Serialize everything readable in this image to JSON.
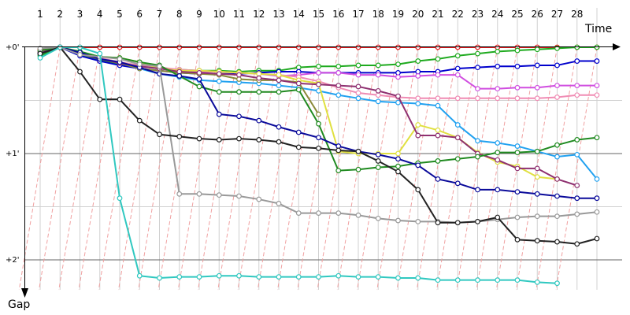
{
  "chart_data": {
    "type": "line",
    "title": "",
    "xlabel": "Time",
    "ylabel": "Gap",
    "x_ticks": [
      1,
      2,
      3,
      4,
      5,
      6,
      7,
      8,
      9,
      10,
      11,
      12,
      13,
      14,
      15,
      16,
      17,
      18,
      19,
      20,
      21,
      22,
      23,
      24,
      25,
      26,
      27,
      28
    ],
    "x_tick_labels": [
      "1",
      "2",
      "3",
      "4",
      "5",
      "6",
      "7",
      "8",
      "9",
      "10",
      "11",
      "12",
      "13",
      "14",
      "15",
      "16",
      "17",
      "18",
      "19",
      "20",
      "21",
      "22",
      "23",
      "24",
      "25",
      "26",
      "27",
      "28"
    ],
    "xlim": [
      1,
      29.5
    ],
    "y_ticks": [
      0,
      1,
      2
    ],
    "y_tick_labels": [
      "+0'",
      "+1'",
      "+2'"
    ],
    "ylim": [
      -0.17,
      2.22
    ],
    "grid": true,
    "series": [
      {
        "color": "#e31a1c",
        "values": [
          0.02,
          0.0,
          0.0,
          0.0,
          0.0,
          0.0,
          0.0,
          0.0,
          0.0,
          0.0,
          0.0,
          0.0,
          0.0,
          0.0,
          0.0,
          0.0,
          0.0,
          0.0,
          0.0,
          0.0,
          0.0,
          0.0,
          0.0,
          0.0,
          0.0,
          0.0,
          0.0,
          0.0,
          0.0
        ]
      },
      {
        "color": "#1faa1f",
        "values": [
          0.08,
          0.0,
          0.07,
          0.12,
          0.16,
          0.18,
          0.2,
          0.21,
          0.22,
          0.22,
          0.23,
          0.22,
          0.22,
          0.19,
          0.18,
          0.18,
          0.17,
          0.17,
          0.16,
          0.13,
          0.11,
          0.08,
          0.06,
          0.04,
          0.03,
          0.02,
          0.01,
          0.0,
          0.0
        ]
      },
      {
        "color": "#0000cc",
        "values": [
          0.05,
          0.0,
          0.08,
          0.13,
          0.17,
          0.2,
          0.22,
          0.24,
          0.25,
          0.25,
          0.25,
          0.24,
          0.23,
          0.23,
          0.24,
          0.24,
          0.24,
          0.24,
          0.24,
          0.23,
          0.23,
          0.2,
          0.19,
          0.18,
          0.18,
          0.17,
          0.17,
          0.13,
          0.13
        ]
      },
      {
        "color": "#d04ee0",
        "values": [
          0.04,
          0.0,
          0.06,
          0.1,
          0.15,
          0.18,
          0.2,
          0.21,
          0.23,
          0.23,
          0.24,
          0.25,
          0.27,
          0.26,
          0.24,
          0.24,
          0.26,
          0.26,
          0.28,
          0.27,
          0.26,
          0.26,
          0.39,
          0.39,
          0.38,
          0.38,
          0.36,
          0.36,
          0.36
        ]
      },
      {
        "color": "#f08cb4",
        "values": [
          0.03,
          0.0,
          0.05,
          0.1,
          0.14,
          0.17,
          0.19,
          0.21,
          0.22,
          0.23,
          0.24,
          0.25,
          0.26,
          0.28,
          0.32,
          0.38,
          0.43,
          0.45,
          0.47,
          0.48,
          0.48,
          0.48,
          0.48,
          0.48,
          0.48,
          0.48,
          0.47,
          0.45,
          0.45
        ]
      },
      {
        "color": "#21a1f0",
        "values": [
          0.06,
          0.0,
          0.06,
          0.11,
          0.15,
          0.2,
          0.25,
          0.28,
          0.31,
          0.32,
          0.33,
          0.34,
          0.36,
          0.38,
          0.41,
          0.45,
          0.48,
          0.51,
          0.52,
          0.53,
          0.55,
          0.73,
          0.88,
          0.9,
          0.93,
          0.98,
          1.03,
          1.01,
          1.24
        ]
      },
      {
        "color": "#8a8a3a",
        "values": [
          0.06,
          0.0,
          0.06,
          0.11,
          0.15,
          0.2,
          0.22,
          0.24,
          0.25,
          0.26,
          0.3,
          0.31,
          0.31,
          0.33,
          0.63
        ]
      },
      {
        "color": "#e0e040",
        "values": [
          0.05,
          0.0,
          0.05,
          0.09,
          0.1,
          0.14,
          0.2,
          0.22,
          0.22,
          0.23,
          0.24,
          0.25,
          0.26,
          0.31,
          0.34,
          0.98,
          1.0,
          1.0,
          1.0,
          0.73,
          0.78,
          0.85,
          0.99,
          1.08,
          1.12,
          1.22,
          1.24
        ]
      },
      {
        "color": "#8e3070",
        "values": [
          0.05,
          0.0,
          0.06,
          0.11,
          0.15,
          0.18,
          0.2,
          0.23,
          0.24,
          0.25,
          0.26,
          0.29,
          0.31,
          0.34,
          0.35,
          0.36,
          0.37,
          0.41,
          0.46,
          0.83,
          0.83,
          0.85,
          1.0,
          1.06,
          1.14,
          1.14,
          1.24,
          1.3
        ]
      },
      {
        "color": "#208a20",
        "values": [
          0.03,
          0.0,
          0.04,
          0.09,
          0.1,
          0.14,
          0.17,
          0.27,
          0.37,
          0.42,
          0.42,
          0.42,
          0.42,
          0.4,
          0.72,
          1.16,
          1.15,
          1.13,
          1.12,
          1.09,
          1.07,
          1.05,
          1.03,
          0.99,
          0.99,
          0.98,
          0.92,
          0.87,
          0.85
        ]
      },
      {
        "color": "#0a0a9a",
        "values": [
          0.06,
          0.0,
          0.05,
          0.11,
          0.14,
          0.19,
          0.25,
          0.27,
          0.3,
          0.63,
          0.65,
          0.69,
          0.75,
          0.8,
          0.85,
          0.93,
          0.98,
          1.01,
          1.05,
          1.11,
          1.24,
          1.28,
          1.34,
          1.34,
          1.36,
          1.38,
          1.4,
          1.42,
          1.42
        ]
      },
      {
        "color": "#999999",
        "values": [
          0.01,
          0.0,
          0.07,
          0.09,
          0.11,
          0.16,
          0.18,
          1.38,
          1.38,
          1.39,
          1.4,
          1.43,
          1.47,
          1.56,
          1.56,
          1.56,
          1.58,
          1.61,
          1.63,
          1.64,
          1.64,
          1.65,
          1.64,
          1.62,
          1.6,
          1.59,
          1.59,
          1.57,
          1.55
        ]
      },
      {
        "color": "#222222",
        "values": [
          0.06,
          0.0,
          0.23,
          0.49,
          0.49,
          0.69,
          0.82,
          0.84,
          0.86,
          0.87,
          0.86,
          0.87,
          0.89,
          0.94,
          0.95,
          0.97,
          0.98,
          1.07,
          1.17,
          1.34,
          1.65,
          1.65,
          1.64,
          1.6,
          1.81,
          1.82,
          1.83,
          1.85,
          1.8
        ]
      },
      {
        "color": "#30c8c0",
        "values": [
          0.1,
          0.0,
          0.0,
          0.06,
          1.42,
          2.15,
          2.17,
          2.16,
          2.16,
          2.15,
          2.15,
          2.16,
          2.16,
          2.16,
          2.16,
          2.15,
          2.16,
          2.16,
          2.17,
          2.17,
          2.19,
          2.19,
          2.19,
          2.19,
          2.19,
          2.21,
          2.22
        ]
      }
    ]
  }
}
